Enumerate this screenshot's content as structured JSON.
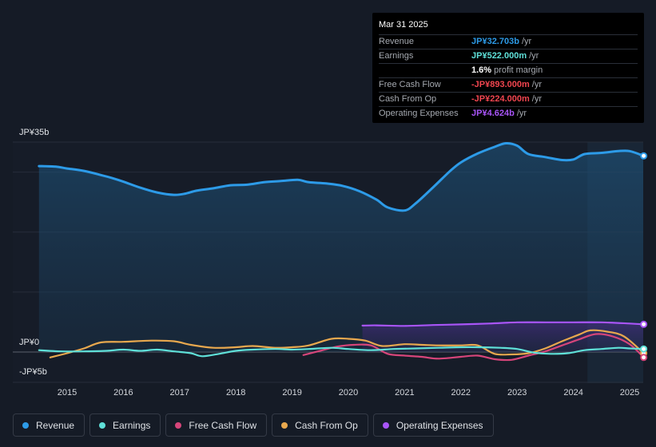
{
  "tooltip": {
    "date": "Mar 31 2025",
    "rows": [
      {
        "label": "Revenue",
        "value": "JP¥32.703b",
        "unit": "/yr",
        "color": "#2d9be8"
      },
      {
        "label": "Earnings",
        "value": "JP¥522.000m",
        "unit": "/yr",
        "color": "#5fe0d8"
      },
      {
        "label": "",
        "value": "1.6%",
        "unit": "profit margin",
        "color": "#ffffff"
      },
      {
        "label": "Free Cash Flow",
        "value": "-JP¥893.000m",
        "unit": "/yr",
        "color": "#f0454f"
      },
      {
        "label": "Cash From Op",
        "value": "-JP¥224.000m",
        "unit": "/yr",
        "color": "#f0454f"
      },
      {
        "label": "Operating Expenses",
        "value": "JP¥4.624b",
        "unit": "/yr",
        "color": "#a855f7"
      }
    ]
  },
  "legend": [
    {
      "label": "Revenue",
      "color": "#2d9be8"
    },
    {
      "label": "Earnings",
      "color": "#5fe0d8"
    },
    {
      "label": "Free Cash Flow",
      "color": "#d6457a"
    },
    {
      "label": "Cash From Op",
      "color": "#e8a84e"
    },
    {
      "label": "Operating Expenses",
      "color": "#a855f7"
    }
  ],
  "chart_data": {
    "type": "line",
    "title": "",
    "xlabel": "",
    "ylabel": "",
    "ylim": [
      -5,
      35
    ],
    "y_tick_labels": [
      "JP¥35b",
      "JP¥0",
      "-JP¥5b"
    ],
    "x_tick_labels": [
      "2015",
      "2016",
      "2017",
      "2018",
      "2019",
      "2020",
      "2021",
      "2022",
      "2023",
      "2024",
      "2025"
    ],
    "x_ticks": [
      2015,
      2016,
      2017,
      2018,
      2019,
      2020,
      2021,
      2022,
      2023,
      2024,
      2025
    ],
    "xlim": [
      2014.0,
      2025.3
    ],
    "forecast_start": 2024.25,
    "series": [
      {
        "name": "Revenue",
        "color": "#2d9be8",
        "fill": true,
        "x": [
          2014.5,
          2014.8,
          2015.0,
          2015.3,
          2015.6,
          2015.8,
          2016.0,
          2016.3,
          2016.6,
          2016.9,
          2017.1,
          2017.3,
          2017.6,
          2017.9,
          2018.2,
          2018.5,
          2018.8,
          2019.1,
          2019.3,
          2019.6,
          2019.9,
          2020.2,
          2020.5,
          2020.7,
          2021.0,
          2021.2,
          2021.5,
          2021.8,
          2022.0,
          2022.3,
          2022.6,
          2022.8,
          2023.0,
          2023.2,
          2023.5,
          2023.8,
          2024.0,
          2024.2,
          2024.5,
          2024.8,
          2025.0,
          2025.25
        ],
        "y": [
          31.0,
          30.9,
          30.6,
          30.2,
          29.5,
          29.0,
          28.4,
          27.4,
          26.6,
          26.2,
          26.4,
          26.9,
          27.3,
          27.8,
          27.9,
          28.3,
          28.5,
          28.7,
          28.3,
          28.1,
          27.7,
          26.8,
          25.4,
          24.1,
          23.6,
          24.8,
          27.4,
          30.1,
          31.6,
          33.1,
          34.2,
          34.8,
          34.4,
          33.0,
          32.5,
          32.0,
          32.1,
          33.0,
          33.2,
          33.5,
          33.5,
          32.7
        ]
      },
      {
        "name": "Operating Expenses",
        "color": "#a855f7",
        "fill": true,
        "x": [
          2020.25,
          2020.5,
          2021.0,
          2021.5,
          2022.0,
          2022.5,
          2023.0,
          2023.5,
          2024.0,
          2024.5,
          2025.0,
          2025.25
        ],
        "y": [
          4.4,
          4.45,
          4.35,
          4.5,
          4.6,
          4.75,
          4.95,
          4.95,
          4.95,
          4.95,
          4.75,
          4.62
        ]
      },
      {
        "name": "Cash From Op",
        "color": "#e8a84e",
        "fill": false,
        "x": [
          2014.7,
          2015.0,
          2015.3,
          2015.6,
          2016.0,
          2016.5,
          2016.9,
          2017.2,
          2017.6,
          2018.0,
          2018.3,
          2018.7,
          2019.0,
          2019.3,
          2019.7,
          2020.0,
          2020.3,
          2020.6,
          2021.0,
          2021.3,
          2021.6,
          2022.0,
          2022.3,
          2022.6,
          2022.9,
          2023.2,
          2023.5,
          2023.8,
          2024.1,
          2024.3,
          2024.6,
          2024.9,
          2025.25
        ],
        "y": [
          -0.9,
          -0.2,
          0.6,
          1.6,
          1.7,
          1.9,
          1.8,
          1.2,
          0.7,
          0.8,
          1.0,
          0.7,
          0.8,
          1.1,
          2.2,
          2.2,
          1.9,
          1.0,
          1.3,
          1.2,
          1.1,
          1.1,
          1.1,
          -0.3,
          -0.4,
          -0.2,
          0.6,
          1.8,
          2.9,
          3.6,
          3.4,
          2.6,
          -0.2
        ]
      },
      {
        "name": "Free Cash Flow",
        "color": "#d6457a",
        "fill": false,
        "x": [
          2019.2,
          2019.5,
          2019.8,
          2020.1,
          2020.4,
          2020.7,
          2021.0,
          2021.3,
          2021.6,
          2022.0,
          2022.3,
          2022.6,
          2022.9,
          2023.2,
          2023.5,
          2023.8,
          2024.1,
          2024.4,
          2024.7,
          2025.0,
          2025.25
        ],
        "y": [
          -0.5,
          0.2,
          0.9,
          1.2,
          1.1,
          -0.3,
          -0.6,
          -0.8,
          -1.1,
          -0.8,
          -0.6,
          -1.2,
          -1.3,
          -0.6,
          0.1,
          1.1,
          2.1,
          3.0,
          2.6,
          1.3,
          -0.9
        ]
      },
      {
        "name": "Earnings",
        "color": "#5fe0d8",
        "fill": false,
        "x": [
          2014.5,
          2014.9,
          2015.3,
          2015.7,
          2016.0,
          2016.3,
          2016.6,
          2016.9,
          2017.2,
          2017.4,
          2017.7,
          2018.0,
          2018.3,
          2018.7,
          2019.0,
          2019.3,
          2019.7,
          2020.0,
          2020.4,
          2020.8,
          2021.2,
          2021.6,
          2022.0,
          2022.3,
          2022.7,
          2023.0,
          2023.3,
          2023.6,
          2023.9,
          2024.2,
          2024.5,
          2024.8,
          2025.0,
          2025.25
        ],
        "y": [
          0.3,
          0.1,
          0.1,
          0.2,
          0.4,
          0.2,
          0.4,
          0.1,
          -0.2,
          -0.7,
          -0.3,
          0.2,
          0.4,
          0.5,
          0.4,
          0.5,
          0.7,
          0.5,
          0.3,
          0.5,
          0.6,
          0.7,
          0.8,
          0.8,
          0.7,
          0.5,
          -0.1,
          -0.3,
          -0.2,
          0.3,
          0.5,
          0.7,
          0.6,
          0.5
        ]
      }
    ]
  }
}
